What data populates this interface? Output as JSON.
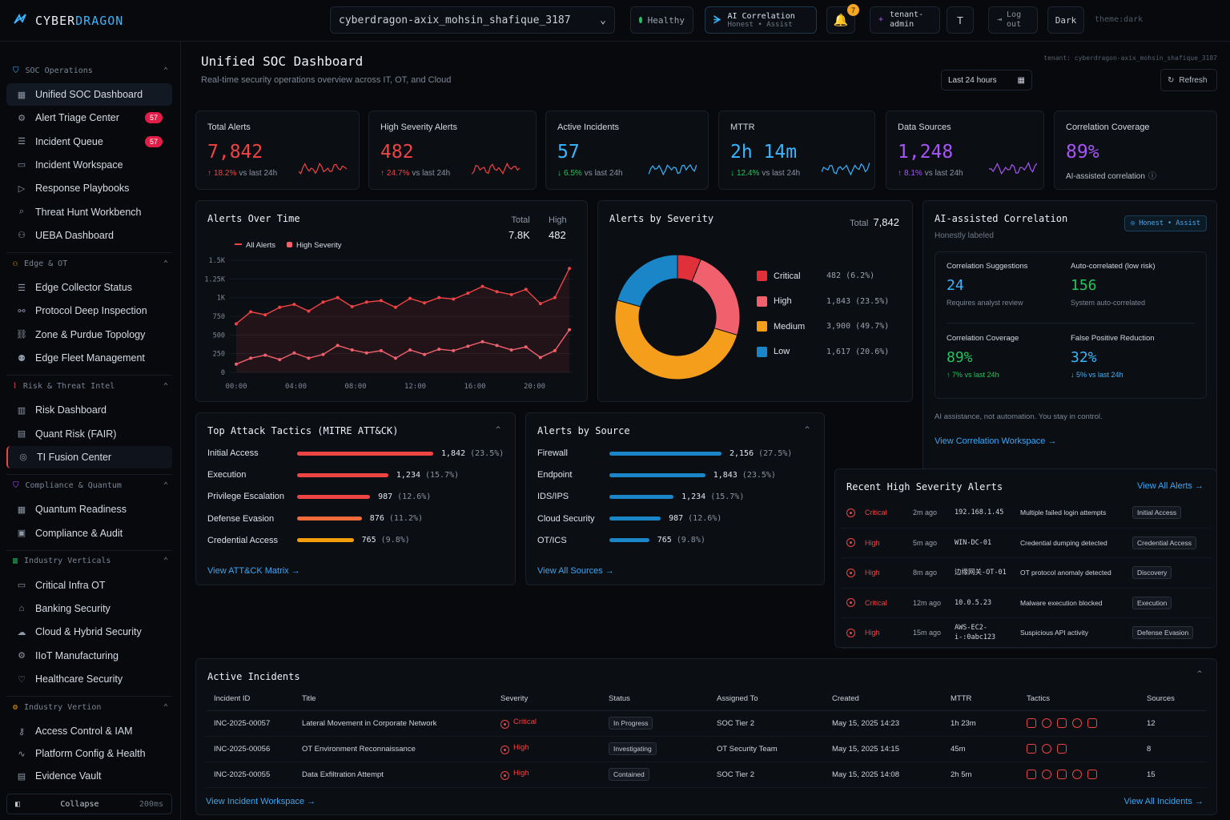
{
  "app": {
    "brand_a": "CYBER",
    "brand_b": "DRAGON",
    "theme_label": "theme:dark"
  },
  "topbar": {
    "tenant": "cyberdragon-axix_mohsin_shafique_3187",
    "health": "Healthy",
    "ai_title": "AI Correlation",
    "ai_sub": "Honest • Assist",
    "notif_count": "7",
    "user_l1": "tenant-",
    "user_l2": "admin",
    "user_initial": "T",
    "logout_l1": "Log",
    "logout_l2": "out",
    "theme_btn": "Dark"
  },
  "sidebar": {
    "sections": [
      {
        "label": "SOC Operations",
        "items": [
          {
            "label": "Unified SOC Dashboard"
          },
          {
            "label": "Alert Triage Center",
            "count": "57"
          },
          {
            "label": "Incident Queue",
            "count": "57"
          },
          {
            "label": "Incident Workspace"
          },
          {
            "label": "Response Playbooks"
          },
          {
            "label": "Threat Hunt Workbench"
          },
          {
            "label": "UEBA Dashboard"
          }
        ]
      },
      {
        "label": "Edge & OT",
        "items": [
          {
            "label": "Edge Collector Status"
          },
          {
            "label": "Protocol Deep Inspection"
          },
          {
            "label": "Zone & Purdue Topology"
          },
          {
            "label": "Edge Fleet Management"
          }
        ]
      },
      {
        "label": "Risk & Threat Intel",
        "items": [
          {
            "label": "Risk Dashboard"
          },
          {
            "label": "Quant Risk (FAIR)"
          },
          {
            "label": "TI Fusion Center"
          }
        ]
      },
      {
        "label": "Compliance & Quantum",
        "items": [
          {
            "label": "Quantum Readiness"
          },
          {
            "label": "Compliance & Audit"
          }
        ]
      },
      {
        "label": "Industry Verticals",
        "items": [
          {
            "label": "Critical Infra OT"
          },
          {
            "label": "Banking Security"
          },
          {
            "label": "Cloud & Hybrid Security"
          },
          {
            "label": "IIoT Manufacturing"
          },
          {
            "label": "Healthcare Security"
          }
        ]
      },
      {
        "label": "Industry Vertion",
        "items": [
          {
            "label": "Access Control & IAM"
          },
          {
            "label": "Platform Config & Health"
          },
          {
            "label": "Evidence Vault"
          }
        ]
      }
    ],
    "collapse_label": "Collapse",
    "collapse_ms": "200ms"
  },
  "page": {
    "title": "Unified SOC Dashboard",
    "subtitle": "Real-time security operations overview across IT, OT, and Cloud",
    "tenant": "tenant: cyberdragon-axix_mohsin_shafique_3187",
    "range": "Last 24 hours",
    "refresh": "Refresh"
  },
  "colors": {
    "red": "#ef4444",
    "blue": "#38b6ff",
    "green": "#22c55e",
    "purple": "#a855f7",
    "orange": "#f59e0b",
    "critical": "#e0303a",
    "high": "#f0616d",
    "medium": "#f59e1b",
    "low": "#1a86c7"
  },
  "kpis": [
    {
      "label": "Total Alerts",
      "value": "7,842",
      "delta": "18.2%",
      "suffix": "vs last 24h",
      "arrow": "↑",
      "color": "#ef4444"
    },
    {
      "label": "High Severity Alerts",
      "value": "482",
      "delta": "24.7%",
      "suffix": "vs last 24h",
      "arrow": "↑",
      "color": "#ef4444"
    },
    {
      "label": "Active Incidents",
      "value": "57",
      "delta": "6.5%",
      "suffix": "vs last 24h",
      "arrow": "↓",
      "color": "#38b6ff"
    },
    {
      "label": "MTTR",
      "value": "2h 14m",
      "delta": "12.4%",
      "suffix": "vs last 24h",
      "arrow": "↓",
      "color": "#38b6ff"
    },
    {
      "label": "Data Sources",
      "value": "1,248",
      "delta": "8.1%",
      "suffix": "vs last 24h",
      "arrow": "↑",
      "color": "#a855f7"
    },
    {
      "label": "Correlation Coverage",
      "value": "89%",
      "delta": "",
      "suffix": "AI-assisted correlation",
      "arrow": "",
      "color": "#a855f7"
    }
  ],
  "chart_data": [
    {
      "type": "line",
      "title": "Alerts Over Time",
      "legend": [
        "All Alerts",
        "High Severity"
      ],
      "stats": [
        {
          "label": "Total",
          "value": "7.8K"
        },
        {
          "label": "High",
          "value": "482"
        }
      ],
      "x_ticks": [
        "00:00",
        "04:00",
        "08:00",
        "12:00",
        "16:00",
        "20:00"
      ],
      "y_ticks": [
        "0",
        "250",
        "500",
        "750",
        "1K",
        "1.25K",
        "1.5K"
      ],
      "ylim": [
        0,
        1500
      ],
      "x": [
        0,
        1,
        2,
        3,
        4,
        5,
        6,
        7,
        8,
        9,
        10,
        11,
        12,
        13,
        14,
        15,
        16,
        17,
        18,
        19,
        20,
        21,
        22,
        23
      ],
      "series": [
        {
          "name": "All Alerts",
          "values": [
            650,
            810,
            770,
            870,
            910,
            820,
            940,
            1000,
            880,
            940,
            960,
            870,
            990,
            930,
            1000,
            980,
            1060,
            1150,
            1080,
            1040,
            1110,
            920,
            1000,
            1390
          ]
        },
        {
          "name": "High Severity",
          "values": [
            110,
            190,
            230,
            170,
            260,
            190,
            240,
            360,
            300,
            260,
            290,
            190,
            300,
            240,
            310,
            290,
            350,
            410,
            360,
            300,
            340,
            200,
            290,
            570
          ]
        }
      ]
    },
    {
      "type": "pie",
      "title": "Alerts by Severity",
      "total_label": "Total",
      "total": "7,842",
      "categories": [
        "Critical",
        "High",
        "Medium",
        "Low"
      ],
      "values": [
        482,
        1843,
        3900,
        1617
      ],
      "labels": [
        "482 (6.2%)",
        "1,843 (23.5%)",
        "3,900 (49.7%)",
        "1,617 (20.6%)"
      ]
    },
    {
      "type": "bar",
      "title": "Top Attack Tactics (MITRE ATT&CK)",
      "categories": [
        "Initial Access",
        "Execution",
        "Privilege Escalation",
        "Defense Evasion",
        "Credential Access"
      ],
      "values": [
        1842,
        1234,
        987,
        876,
        765
      ],
      "labels": [
        "(23.5%)",
        "(15.7%)",
        "(12.6%)",
        "(11.2%)",
        "(9.8%)"
      ],
      "value_labels": [
        "1,842",
        "1,234",
        "987",
        "876",
        "765"
      ]
    },
    {
      "type": "bar",
      "title": "Alerts by Source",
      "categories": [
        "Firewall",
        "Endpoint",
        "IDS/IPS",
        "Cloud Security",
        "OT/ICS"
      ],
      "values": [
        2156,
        1843,
        1234,
        987,
        765
      ],
      "labels": [
        "(27.5%)",
        "(23.5%)",
        "(15.7%)",
        "(12.6%)",
        "(9.8%)"
      ],
      "value_labels": [
        "2,156",
        "1,843",
        "1,234",
        "987",
        "765"
      ]
    }
  ],
  "tactics_link": "View ATT&CK Matrix",
  "sources_link": "View All Sources",
  "ai": {
    "title": "AI-assisted Correlation",
    "sub": "Honestly labeled",
    "badge": "Honest • Assist",
    "cells": [
      {
        "label": "Correlation Suggestions",
        "value": "24",
        "note": "Requires analyst review"
      },
      {
        "label": "Auto-correlated (low risk)",
        "value": "156",
        "note": "System auto-correlated"
      },
      {
        "label": "Correlation Coverage",
        "value": "89%",
        "note": "↑ 7% vs last 24h"
      },
      {
        "label": "False Positive Reduction",
        "value": "32%",
        "note": "↓ 5% vs last 24h"
      }
    ],
    "disclaimer": "AI assistance, not automation.  You stay in control.",
    "link": "View Correlation Workspace"
  },
  "recent": {
    "title": "Recent High Severity Alerts",
    "link": "View All Alerts",
    "rows": [
      {
        "sev": "Critical",
        "time": "2m ago",
        "host": "192.168.1.45",
        "desc": "Multiple failed login attempts",
        "tag": "Initial Access"
      },
      {
        "sev": "High",
        "time": "5m ago",
        "host": "WIN-DC-01",
        "desc": "Credential dumping detected",
        "tag": "Credential Access"
      },
      {
        "sev": "High",
        "time": "8m ago",
        "host": "边缘网关-OT-01",
        "desc": "OT  protocol anomaly detected",
        "tag": "Discovery"
      },
      {
        "sev": "Critical",
        "time": "12m ago",
        "host": "10.0.5.23",
        "desc": "Malware execution blocked",
        "tag": "Execution"
      },
      {
        "sev": "High",
        "time": "15m ago",
        "host": "AWS-EC2-i-:0abc123",
        "desc": "Suspicious API activity",
        "tag": "Defense Evasion"
      }
    ]
  },
  "incidents": {
    "title": "Active Incidents",
    "headers": [
      "Incident ID",
      "Title",
      "Severity",
      "Status",
      "Assigned To",
      "Created",
      "MTTR",
      "Tactics",
      "Sources"
    ],
    "rows": [
      {
        "id": "INC-2025-00057",
        "title": "Lateral Movement in Corporate Network",
        "sev": "Critical",
        "status": "In Progress",
        "assigned": "SOC Tier 2",
        "created": "May 15, 2025 14:23",
        "mttr": "1h 23m",
        "sources": "12"
      },
      {
        "id": "INC-2025-00056",
        "title": "OT Environment Reconnaissance",
        "sev": "High",
        "status": "Investigating",
        "assigned": "OT Security Team",
        "created": "May 15, 2025 14:15",
        "mttr": "45m",
        "sources": "8"
      },
      {
        "id": "INC-2025-00055",
        "title": "Data Exfiltration Attempt",
        "sev": "High",
        "status": "Contained",
        "assigned": "SOC Tier 2",
        "created": "May 15, 2025 14:08",
        "mttr": "2h 5m",
        "sources": "15"
      }
    ],
    "link_left": "View Incident Workspace",
    "link_right": "View All Incidents"
  }
}
